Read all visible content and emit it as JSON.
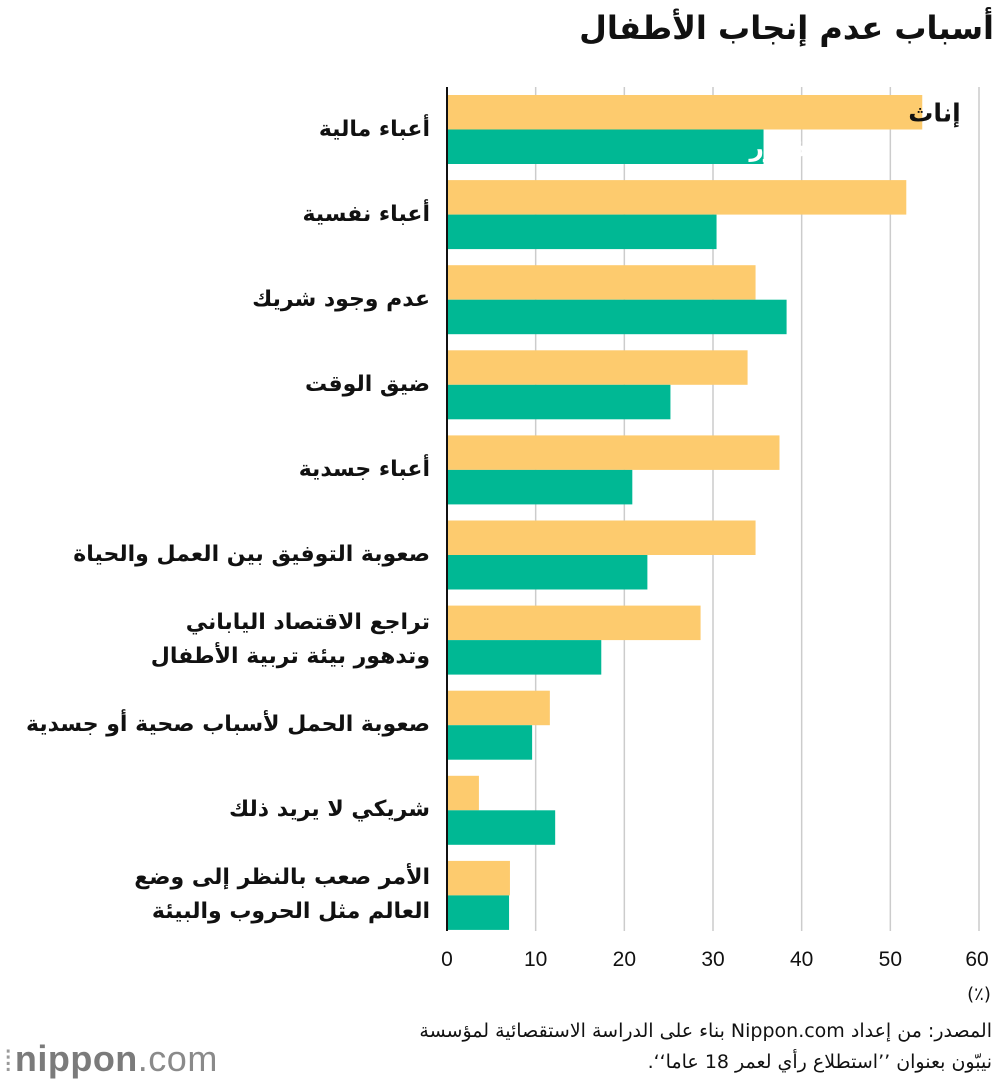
{
  "page": {
    "title": "أسباب عدم إنجاب الأطفال",
    "source_line1": "المصدر: من إعداد Nippon.com بناء على الدراسة الاستقصائية لمؤسسة",
    "source_line2": "نيبّون بعنوان ’’استطلاع رأي لعمر 18 عاما‘‘.",
    "logo_bold": "nippon",
    "logo_light": ".com"
  },
  "chart_data": {
    "type": "bar",
    "orientation": "horizontal",
    "title": "أسباب عدم إنجاب الأطفال",
    "categories": [
      [
        "أعباء مالية"
      ],
      [
        "أعباء نفسية"
      ],
      [
        "عدم وجود شريك"
      ],
      [
        "ضيق الوقت"
      ],
      [
        "أعباء جسدية"
      ],
      [
        "صعوبة التوفيق بين العمل والحياة"
      ],
      [
        "تراجع الاقتصاد الياباني",
        "وتدهور بيئة تربية الأطفال"
      ],
      [
        "صعوبة الحمل لأسباب صحية أو جسدية"
      ],
      [
        "شريكي لا يريد ذلك"
      ],
      [
        "الأمر صعب بالنظر إلى وضع",
        "العالم مثل الحروب والبيئة"
      ]
    ],
    "series": [
      {
        "name": "إناث",
        "color": "#fdcb6e",
        "label_color": "#111111",
        "values": [
          53.6,
          51.8,
          34.8,
          33.9,
          37.5,
          34.8,
          28.6,
          11.6,
          3.6,
          7.1
        ]
      },
      {
        "name": "ذكور",
        "color": "#00b894",
        "label_color": "#ffffff",
        "values": [
          35.7,
          30.4,
          38.3,
          25.2,
          20.9,
          22.6,
          17.4,
          9.6,
          12.2,
          7.0
        ]
      }
    ],
    "xlim": [
      0,
      60
    ],
    "xticks": [
      0,
      10,
      20,
      30,
      40,
      50,
      60
    ],
    "xunit": "(٪)",
    "grid": true,
    "gridline_color": "#cccccc"
  }
}
